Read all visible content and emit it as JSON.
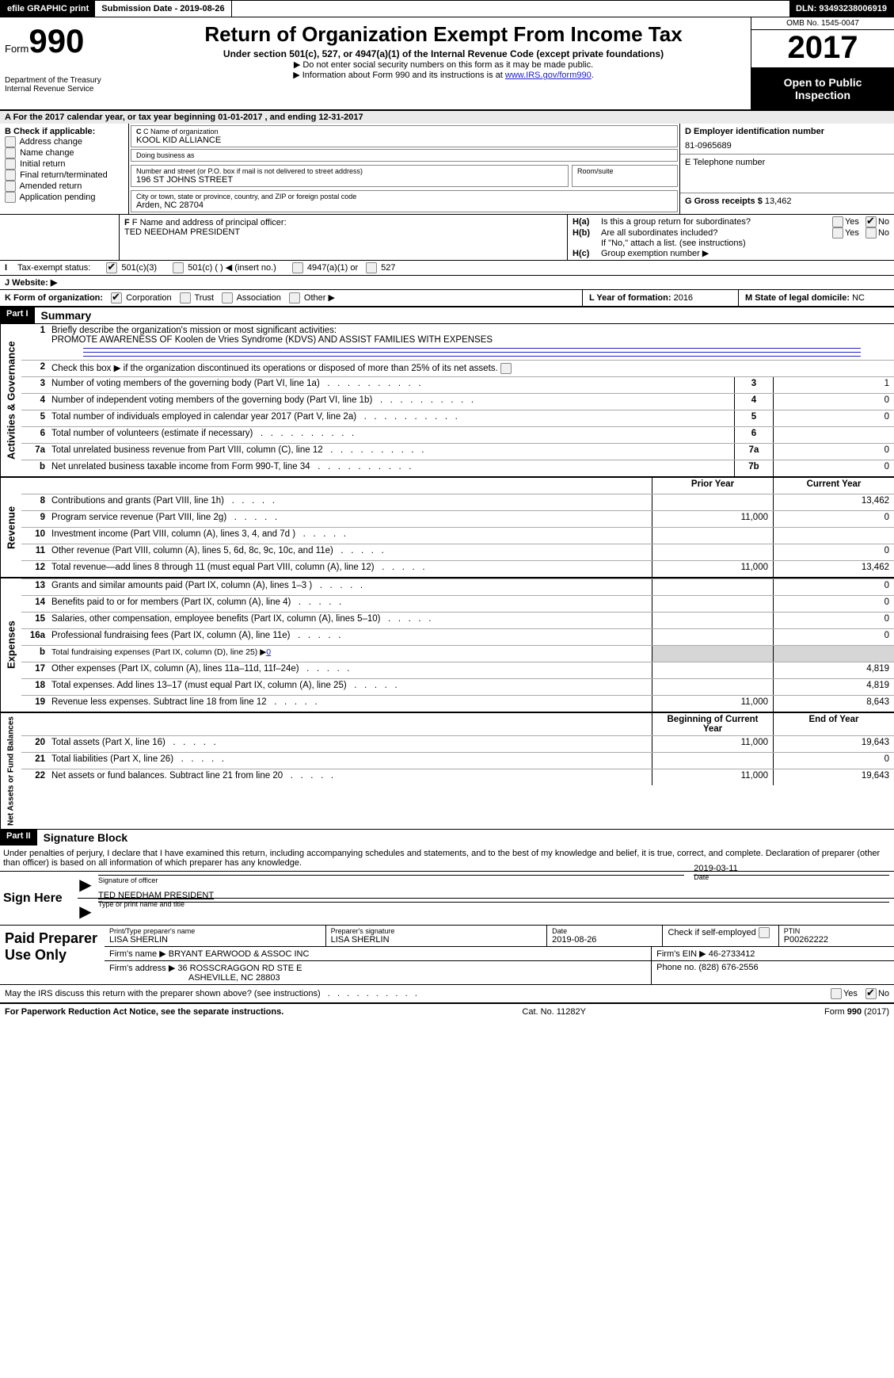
{
  "topbar": {
    "efile": "efile GRAPHIC print",
    "submission": "Submission Date - 2019-08-26",
    "dln": "DLN: 93493238006919"
  },
  "header": {
    "form_word": "Form",
    "form_num": "990",
    "dept1": "Department of the Treasury",
    "dept2": "Internal Revenue Service",
    "title": "Return of Organization Exempt From Income Tax",
    "sub": "Under section 501(c), 527, or 4947(a)(1) of the Internal Revenue Code (except private foundations)",
    "note1": "▶ Do not enter social security numbers on this form as it may be made public.",
    "note2_pre": "▶ Information about Form 990 and its instructions is at ",
    "note2_link": "www.IRS.gov/form990",
    "omb": "OMB No. 1545-0047",
    "year": "2017",
    "open": "Open to Public Inspection"
  },
  "lineA": "A   For the 2017 calendar year, or tax year beginning 01-01-2017        , and ending 12-31-2017",
  "blockB": {
    "title": "B Check if applicable:",
    "opts": [
      "Address change",
      "Name change",
      "Initial return",
      "Final return/terminated",
      "Amended return",
      "Application pending"
    ]
  },
  "blockC": {
    "name_lbl": "C Name of organization",
    "name": "KOOL KID ALLIANCE",
    "dba_lbl": "Doing business as",
    "dba": "",
    "street_lbl": "Number and street (or P.O. box if mail is not delivered to street address)",
    "street": "196 ST JOHNS STREET",
    "room_lbl": "Room/suite",
    "city_lbl": "City or town, state or province, country, and ZIP or foreign postal code",
    "city": "Arden, NC   28704"
  },
  "blockD": {
    "lbl": "D Employer identification number",
    "val": "81-0965689"
  },
  "blockE": {
    "lbl": "E Telephone number",
    "val": ""
  },
  "blockG": {
    "lbl": "G Gross receipts $",
    "val": "13,462"
  },
  "blockF": {
    "lbl": "F Name and address of principal officer:",
    "val": "TED NEEDHAM PRESIDENT"
  },
  "blockH": {
    "a": "Is this a group return for subordinates?",
    "b": "Are all subordinates included?",
    "b_note": "If \"No,\" attach a list. (see instructions)",
    "c": "Group exemption number ▶"
  },
  "blockI": {
    "lbl": "Tax-exempt status:",
    "o1": "501(c)(3)",
    "o2": "501(c) (  ) ◀ (insert no.)",
    "o3": "4947(a)(1) or",
    "o4": "527"
  },
  "blockJ": "J   Website: ▶",
  "blockK": {
    "lbl": "K Form of organization:",
    "o1": "Corporation",
    "o2": "Trust",
    "o3": "Association",
    "o4": "Other ▶"
  },
  "blockL": {
    "lbl": "L Year of formation:",
    "val": "2016"
  },
  "blockM": {
    "lbl": "M State of legal domicile:",
    "val": "NC"
  },
  "partI": {
    "tag": "Part I",
    "title": "Summary",
    "r1_lbl": "Briefly describe the organization's mission or most significant activities:",
    "r1_val": "PROMOTE AWARENESS OF Koolen de Vries Syndrome (KDVS) AND ASSIST FAMILIES WITH EXPENSES",
    "r2": "Check this box ▶        if the organization discontinued its operations or disposed of more than 25% of its net assets.",
    "rows_gov": [
      {
        "n": "3",
        "d": "Number of voting members of the governing body (Part VI, line 1a)",
        "b": "3",
        "v": "1"
      },
      {
        "n": "4",
        "d": "Number of independent voting members of the governing body (Part VI, line 1b)",
        "b": "4",
        "v": "0"
      },
      {
        "n": "5",
        "d": "Total number of individuals employed in calendar year 2017 (Part V, line 2a)",
        "b": "5",
        "v": "0"
      },
      {
        "n": "6",
        "d": "Total number of volunteers (estimate if necessary)",
        "b": "6",
        "v": ""
      },
      {
        "n": "7a",
        "d": "Total unrelated business revenue from Part VIII, column (C), line 12",
        "b": "7a",
        "v": "0"
      },
      {
        "n": "b",
        "d": "Net unrelated business taxable income from Form 990-T, line 34",
        "b": "7b",
        "v": "0"
      }
    ],
    "col_prior": "Prior Year",
    "col_current": "Current Year",
    "rows_rev": [
      {
        "n": "8",
        "d": "Contributions and grants (Part VIII, line 1h)",
        "p": "",
        "c": "13,462"
      },
      {
        "n": "9",
        "d": "Program service revenue (Part VIII, line 2g)",
        "p": "11,000",
        "c": "0"
      },
      {
        "n": "10",
        "d": "Investment income (Part VIII, column (A), lines 3, 4, and 7d )",
        "p": "",
        "c": ""
      },
      {
        "n": "11",
        "d": "Other revenue (Part VIII, column (A), lines 5, 6d, 8c, 9c, 10c, and 11e)",
        "p": "",
        "c": "0"
      },
      {
        "n": "12",
        "d": "Total revenue—add lines 8 through 11 (must equal Part VIII, column (A), line 12)",
        "p": "11,000",
        "c": "13,462"
      }
    ],
    "rows_exp": [
      {
        "n": "13",
        "d": "Grants and similar amounts paid (Part IX, column (A), lines 1–3 )",
        "p": "",
        "c": "0"
      },
      {
        "n": "14",
        "d": "Benefits paid to or for members (Part IX, column (A), line 4)",
        "p": "",
        "c": "0"
      },
      {
        "n": "15",
        "d": "Salaries, other compensation, employee benefits (Part IX, column (A), lines 5–10)",
        "p": "",
        "c": "0"
      },
      {
        "n": "16a",
        "d": "Professional fundraising fees (Part IX, column (A), line 11e)",
        "p": "",
        "c": "0"
      },
      {
        "n": "b",
        "d": "Total fundraising expenses (Part IX, column (D), line 25) ▶",
        "p": "shade",
        "c": "shade",
        "link": "0"
      },
      {
        "n": "17",
        "d": "Other expenses (Part IX, column (A), lines 11a–11d, 11f–24e)",
        "p": "",
        "c": "4,819"
      },
      {
        "n": "18",
        "d": "Total expenses. Add lines 13–17 (must equal Part IX, column (A), line 25)",
        "p": "",
        "c": "4,819"
      },
      {
        "n": "19",
        "d": "Revenue less expenses. Subtract line 18 from line 12",
        "p": "11,000",
        "c": "8,643"
      }
    ],
    "col_beg": "Beginning of Current Year",
    "col_end": "End of Year",
    "rows_net": [
      {
        "n": "20",
        "d": "Total assets (Part X, line 16)",
        "p": "11,000",
        "c": "19,643"
      },
      {
        "n": "21",
        "d": "Total liabilities (Part X, line 26)",
        "p": "",
        "c": "0"
      },
      {
        "n": "22",
        "d": "Net assets or fund balances. Subtract line 21 from line 20",
        "p": "11,000",
        "c": "19,643"
      }
    ]
  },
  "vlabels": {
    "gov": "Activities & Governance",
    "rev": "Revenue",
    "exp": "Expenses",
    "net": "Net Assets or Fund Balances"
  },
  "partII": {
    "tag": "Part II",
    "title": "Signature Block",
    "perjury": "Under penalties of perjury, I declare that I have examined this return, including accompanying schedules and statements, and to the best of my knowledge and belief, it is true, correct, and complete. Declaration of preparer (other than officer) is based on all information of which preparer has any knowledge.",
    "sign_here": "Sign Here",
    "sig_officer": "Signature of officer",
    "date_val": "2019-03-11",
    "date_lbl": "Date",
    "typed_name": "TED NEEDHAM  PRESIDENT",
    "typed_lbl": "Type or print name and title"
  },
  "paid": {
    "lbl": "Paid Preparer Use Only",
    "p_name_lbl": "Print/Type preparer's name",
    "p_name": "LISA SHERLIN",
    "p_sig_lbl": "Preparer's signature",
    "p_sig": "LISA SHERLIN",
    "p_date_lbl": "Date",
    "p_date": "2019-08-26",
    "check_lbl": "Check         if self-employed",
    "ptin_lbl": "PTIN",
    "ptin": "P00262222",
    "firm_name_lbl": "Firm's name     ▶",
    "firm_name": "BRYANT EARWOOD & ASSOC INC",
    "firm_ein_lbl": "Firm's EIN ▶",
    "firm_ein": "46-2733412",
    "firm_addr_lbl": "Firm's address ▶",
    "firm_addr": "36 ROSSCRAGGON RD STE E",
    "firm_city": "ASHEVILLE, NC  28803",
    "phone_lbl": "Phone no.",
    "phone": "(828) 676-2556"
  },
  "discuss": "May the IRS discuss this return with the preparer shown above? (see instructions)",
  "footer": {
    "left": "For Paperwork Reduction Act Notice, see the separate instructions.",
    "mid": "Cat. No. 11282Y",
    "right": "Form 990 (2017)"
  },
  "yes": "Yes",
  "no": "No"
}
